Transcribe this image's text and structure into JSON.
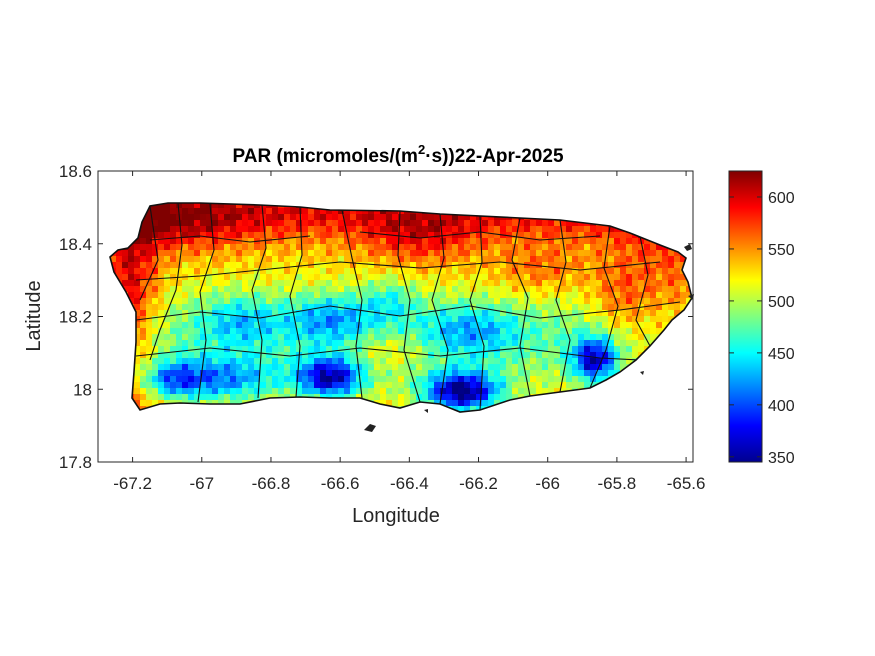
{
  "chart_data": {
    "type": "heatmap",
    "title": {
      "prefix": "PAR (micromoles/(m",
      "superscript": "2",
      "suffix": "·s))22-Apr-2025"
    },
    "xlabel": "Longitude",
    "ylabel": "Latitude",
    "xlim": [
      -67.3,
      -65.58
    ],
    "ylim": [
      17.8,
      18.6
    ],
    "x_ticks": [
      "-67.2",
      "-67",
      "-66.8",
      "-66.6",
      "-66.4",
      "-66.2",
      "-66",
      "-65.8",
      "-65.6"
    ],
    "y_ticks": [
      "17.8",
      "18",
      "18.2",
      "18.4",
      "18.6"
    ],
    "colorbar": {
      "colormap": "jet",
      "range": [
        345,
        625
      ],
      "ticks": [
        "350",
        "400",
        "450",
        "500",
        "550",
        "600"
      ]
    },
    "grid": false,
    "legend": "none",
    "field_summary": [
      {
        "region": "north coast",
        "level": "high (570-620)"
      },
      {
        "region": "west coast",
        "level": "high (560-610)"
      },
      {
        "region": "east / northeast",
        "level": "high (560-620)"
      },
      {
        "region": "central interior",
        "level": "medium (460-520)"
      },
      {
        "region": "south coast near -66.6",
        "level": "low (390-430)"
      },
      {
        "region": "south coast near -66.25",
        "level": "lowest (370-410)"
      },
      {
        "region": "southeast near -65.85",
        "level": "low (400-440)"
      }
    ]
  }
}
